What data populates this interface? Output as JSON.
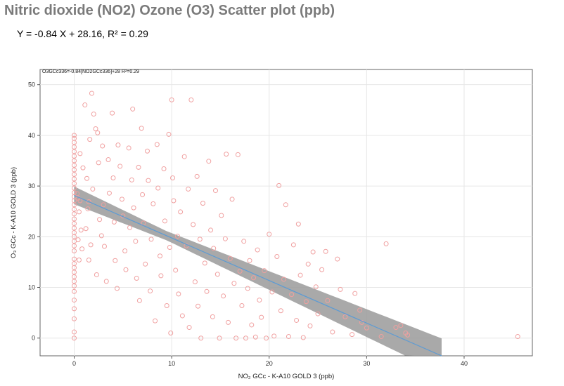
{
  "title": "Nitric dioxide (NO2) Ozone (O3) Scatter plot (ppb)",
  "equation": "Y = -0.84 X + 28.16, R² = 0.29",
  "chart_data": {
    "type": "scatter",
    "title": "Nitric dioxide (NO2) Ozone (O3) Scatter plot (ppb)",
    "annotation": "O3GCc336=-0.84[NO2GCc336]+28 R²=0.29",
    "xlabel": "NO₂ GCc - K-A10 GOLD 3 (ppb)",
    "ylabel": "O₃ GCc - K-A10 GOLD 3 (ppb)",
    "xlim": [
      -3.5,
      47
    ],
    "ylim": [
      -3.5,
      53
    ],
    "xticks": [
      0,
      10,
      20,
      30,
      40
    ],
    "yticks": [
      0,
      10,
      20,
      30,
      40,
      50
    ],
    "grid": true,
    "colors": {
      "points": "#f0a0a0",
      "fit_line": "#5b9bd5",
      "confidence_band": "#9a9a9a"
    },
    "regression": {
      "slope": -0.84,
      "intercept": 28.16,
      "r2": 0.29
    },
    "series": [
      {
        "values": [
          [
            0,
            0
          ],
          [
            0,
            1.2
          ],
          [
            0,
            3.8
          ],
          [
            0,
            5.8
          ],
          [
            0,
            7.5
          ],
          [
            0,
            9.2
          ],
          [
            0,
            10.3
          ],
          [
            0,
            11.2
          ],
          [
            0,
            12.1
          ],
          [
            0,
            13
          ],
          [
            0,
            13.9
          ],
          [
            0,
            14.7
          ],
          [
            0,
            15.6
          ],
          [
            0,
            17.2
          ],
          [
            0,
            18.2
          ],
          [
            0,
            19.1
          ],
          [
            0,
            20
          ],
          [
            0,
            20.8
          ],
          [
            0,
            21.7
          ],
          [
            0,
            22.6
          ],
          [
            0,
            23.5
          ],
          [
            0,
            24.5
          ],
          [
            0,
            25.4
          ],
          [
            0,
            26.3
          ],
          [
            0,
            27.1
          ],
          [
            0,
            27.9
          ],
          [
            0,
            28.7
          ],
          [
            0,
            29.6
          ],
          [
            0,
            30.5
          ],
          [
            0,
            31.4
          ],
          [
            0,
            32.3
          ],
          [
            0,
            33.2
          ],
          [
            0,
            34.1
          ],
          [
            0,
            35
          ],
          [
            0,
            35.9
          ],
          [
            0,
            36.8
          ],
          [
            0,
            37.7
          ],
          [
            0,
            38.6
          ],
          [
            0,
            39.4
          ],
          [
            0,
            40
          ],
          [
            0.3,
            28.5
          ],
          [
            0.4,
            27.6
          ],
          [
            0.6,
            27.1
          ],
          [
            0.5,
            24.9
          ],
          [
            0.7,
            21.3
          ],
          [
            0.4,
            19.4
          ],
          [
            0.8,
            17.6
          ],
          [
            0.5,
            15.4
          ],
          [
            0.9,
            33.6
          ],
          [
            0.6,
            36.4
          ],
          [
            1.1,
            46
          ],
          [
            1.3,
            31.5
          ],
          [
            1.5,
            26.9
          ],
          [
            1.2,
            21.6
          ],
          [
            1.8,
            48.3
          ],
          [
            1.6,
            39.2
          ],
          [
            1.9,
            29.4
          ],
          [
            1.4,
            25.5
          ],
          [
            1.7,
            18.4
          ],
          [
            1.5,
            15.4
          ],
          [
            2.0,
            44.2
          ],
          [
            2.2,
            41.3
          ],
          [
            2.4,
            40.5
          ],
          [
            2.5,
            34.6
          ],
          [
            2.6,
            23.4
          ],
          [
            2.8,
            20.2
          ],
          [
            2.3,
            12.5
          ],
          [
            2.9,
            37.9
          ],
          [
            3.0,
            26.3
          ],
          [
            3.1,
            18.1
          ],
          [
            3.3,
            11.2
          ],
          [
            3.5,
            35.2
          ],
          [
            3.6,
            28.6
          ],
          [
            3.9,
            44.4
          ],
          [
            4.0,
            31.6
          ],
          [
            4.1,
            22.9
          ],
          [
            4.2,
            15.3
          ],
          [
            4.4,
            9.8
          ],
          [
            4.5,
            38.1
          ],
          [
            4.7,
            33.9
          ],
          [
            4.9,
            27.4
          ],
          [
            5.0,
            24.1
          ],
          [
            5.2,
            17.2
          ],
          [
            5.3,
            13.5
          ],
          [
            5.6,
            37.5
          ],
          [
            5.7,
            21.8
          ],
          [
            5.9,
            31.2
          ],
          [
            6.0,
            45.2
          ],
          [
            6.1,
            25.7
          ],
          [
            6.3,
            19.1
          ],
          [
            6.4,
            11.8
          ],
          [
            6.6,
            33.7
          ],
          [
            6.7,
            7.4
          ],
          [
            6.9,
            41.4
          ],
          [
            7.0,
            28.3
          ],
          [
            7.1,
            22.7
          ],
          [
            7.3,
            14.6
          ],
          [
            7.5,
            36.9
          ],
          [
            7.6,
            31.1
          ],
          [
            7.8,
            9.3
          ],
          [
            7.9,
            19.5
          ],
          [
            8.1,
            26.5
          ],
          [
            8.3,
            3.4
          ],
          [
            8.5,
            38.2
          ],
          [
            8.6,
            29.6
          ],
          [
            8.8,
            16.2
          ],
          [
            8.9,
            12.3
          ],
          [
            9.2,
            33.4
          ],
          [
            9.3,
            23.1
          ],
          [
            9.5,
            6.4
          ],
          [
            9.7,
            40.2
          ],
          [
            9.8,
            17.9
          ],
          [
            9.9,
            1.0
          ],
          [
            10.0,
            47.0
          ],
          [
            10.1,
            31.6
          ],
          [
            10.2,
            27.1
          ],
          [
            10.4,
            13.4
          ],
          [
            10.6,
            20.1
          ],
          [
            10.7,
            8.7
          ],
          [
            10.9,
            24.9
          ],
          [
            11.1,
            4.4
          ],
          [
            11.3,
            35.8
          ],
          [
            11.5,
            18.2
          ],
          [
            11.7,
            29.4
          ],
          [
            11.8,
            2.1
          ],
          [
            12.0,
            47.0
          ],
          [
            12.2,
            22.4
          ],
          [
            12.4,
            11.1
          ],
          [
            12.6,
            31.9
          ],
          [
            12.7,
            6.3
          ],
          [
            12.9,
            19.5
          ],
          [
            13.0,
            0
          ],
          [
            13.2,
            26.6
          ],
          [
            13.4,
            14.8
          ],
          [
            13.6,
            9.2
          ],
          [
            13.8,
            34.9
          ],
          [
            14.0,
            21.3
          ],
          [
            14.2,
            4.2
          ],
          [
            14.3,
            17.7
          ],
          [
            14.5,
            29.1
          ],
          [
            14.7,
            12.6
          ],
          [
            14.9,
            0
          ],
          [
            15.1,
            24.2
          ],
          [
            15.3,
            8.3
          ],
          [
            15.5,
            19.6
          ],
          [
            15.6,
            36.3
          ],
          [
            15.8,
            3.1
          ],
          [
            16.0,
            15.7
          ],
          [
            16.2,
            27.4
          ],
          [
            16.4,
            10.8
          ],
          [
            16.6,
            0
          ],
          [
            16.8,
            36.2
          ],
          [
            17.0,
            13.2
          ],
          [
            17.2,
            6.4
          ],
          [
            17.4,
            19.1
          ],
          [
            17.6,
            0
          ],
          [
            17.8,
            9.8
          ],
          [
            18.0,
            15.3
          ],
          [
            18.2,
            2.6
          ],
          [
            18.4,
            11.9
          ],
          [
            18.6,
            0.2
          ],
          [
            18.8,
            17.4
          ],
          [
            19.0,
            7.5
          ],
          [
            19.2,
            4.1
          ],
          [
            19.5,
            13.3
          ],
          [
            19.7,
            0
          ],
          [
            20.0,
            20.5
          ],
          [
            20.3,
            9.1
          ],
          [
            20.5,
            0.4
          ],
          [
            20.8,
            16.1
          ],
          [
            21.0,
            30.1
          ],
          [
            21.2,
            5.4
          ],
          [
            21.5,
            11.6
          ],
          [
            21.7,
            26.3
          ],
          [
            22.0,
            0.3
          ],
          [
            22.3,
            8.6
          ],
          [
            22.5,
            18.4
          ],
          [
            22.8,
            3.5
          ],
          [
            23.0,
            22.5
          ],
          [
            23.2,
            12.4
          ],
          [
            23.5,
            0.1
          ],
          [
            23.8,
            7.2
          ],
          [
            24.0,
            14.6
          ],
          [
            24.2,
            2.4
          ],
          [
            24.5,
            17.0
          ],
          [
            24.8,
            10.1
          ],
          [
            25.0,
            4.8
          ],
          [
            25.4,
            13.5
          ],
          [
            25.8,
            17.1
          ],
          [
            26.0,
            7.4
          ],
          [
            26.5,
            1.2
          ],
          [
            27.0,
            15.6
          ],
          [
            27.3,
            9.6
          ],
          [
            27.8,
            4.2
          ],
          [
            28.5,
            0.7
          ],
          [
            28.8,
            8.8
          ],
          [
            29.3,
            5.5
          ],
          [
            29.5,
            3.1
          ],
          [
            30.0,
            2.0
          ],
          [
            31.5,
            0.3
          ],
          [
            32.0,
            18.6
          ],
          [
            33.0,
            2.1
          ],
          [
            33.5,
            2.5
          ],
          [
            34.0,
            1.0
          ],
          [
            34.2,
            0.6
          ],
          [
            45.5,
            0.3
          ]
        ]
      }
    ]
  }
}
